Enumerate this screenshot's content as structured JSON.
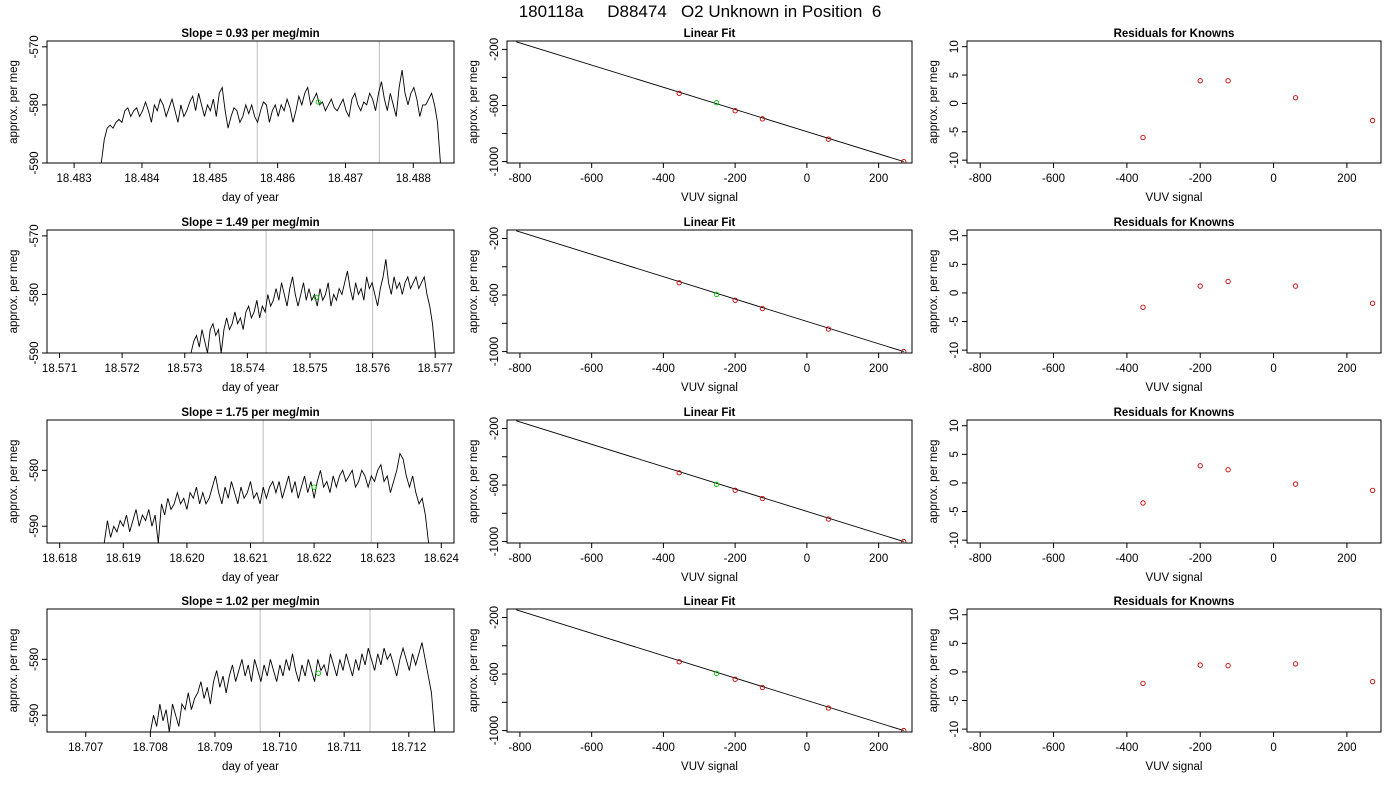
{
  "figure": {
    "title": "180118a     D88474   O2 Unknown in Position  6"
  },
  "styles": {
    "trace_color": "#000000",
    "vline_color": "#c8c8c8",
    "fit_line_color": "#000000",
    "known_point_color": "#cc0000",
    "unknown_point_color": "#00cc00",
    "axis_color": "#000000"
  },
  "chart_data": [
    {
      "type": "line",
      "panel": "timeseries",
      "row": 0,
      "title": "Slope =  0.93  per meg/min",
      "xlabel": "day of year",
      "ylabel": "approx. per meg",
      "xlim": [
        18.4826,
        18.4886
      ],
      "ylim": [
        -590,
        -569
      ],
      "xticks": [
        18.483,
        18.484,
        18.485,
        18.486,
        18.487,
        18.488
      ],
      "xtick_labels": [
        "18.483",
        "18.484",
        "18.485",
        "18.486",
        "18.487",
        "18.488"
      ],
      "yticks": [
        -590,
        -580,
        -570
      ],
      "ytick_labels": [
        "-590",
        "-580",
        "-570"
      ],
      "vlines": [
        18.4857,
        18.4875
      ],
      "trace": {
        "x_start": 18.4834,
        "x_end": 18.4884,
        "values": [
          -590,
          -586,
          -584,
          -583.5,
          -584,
          -583,
          -582.5,
          -583,
          -581,
          -580.5,
          -582,
          -581,
          -580.5,
          -582,
          -581,
          -579.5,
          -581,
          -583,
          -580,
          -581,
          -579,
          -580,
          -582,
          -580.5,
          -579,
          -581,
          -583,
          -580,
          -582,
          -581,
          -579.5,
          -578.5,
          -581,
          -578,
          -580,
          -582,
          -580,
          -581,
          -579,
          -582,
          -578,
          -577,
          -581,
          -584,
          -582,
          -580.5,
          -581,
          -583,
          -582,
          -580,
          -581.5,
          -580,
          -582,
          -583,
          -581,
          -579.5,
          -580,
          -583,
          -581,
          -580,
          -582,
          -580,
          -581,
          -579,
          -580.5,
          -583,
          -581,
          -578.5,
          -580,
          -578,
          -577,
          -580,
          -579,
          -578,
          -580,
          -579.5,
          -581,
          -580,
          -579,
          -580.5,
          -581,
          -580,
          -579,
          -581,
          -582,
          -579,
          -578,
          -580,
          -581,
          -579.5,
          -580,
          -578,
          -579,
          -581,
          -578,
          -576,
          -579,
          -581,
          -578,
          -580,
          -582,
          -577,
          -574,
          -578,
          -580,
          -578,
          -577,
          -579,
          -582,
          -580,
          -580,
          -579,
          -578,
          -580,
          -583,
          -590
        ]
      },
      "unknown_point": {
        "x": 18.4866,
        "y": -579.5
      }
    },
    {
      "type": "scatter",
      "panel": "linear_fit",
      "row": 0,
      "title": "Linear Fit",
      "xlabel": "VUV signal",
      "ylabel": "approx. per meg",
      "xlim": [
        -836,
        293
      ],
      "ylim": [
        -1010,
        -140
      ],
      "xticks": [
        -800,
        -600,
        -400,
        -200,
        0,
        200
      ],
      "xtick_labels": [
        "-800",
        "-600",
        "-400",
        "-200",
        "0",
        "200"
      ],
      "yticks": [
        -1000,
        -800,
        -600,
        -400,
        -200
      ],
      "ytick_labels": [
        "-1000",
        "",
        "-600",
        "",
        "-200"
      ],
      "fit_line": {
        "x": [
          -810,
          270
        ],
        "y": [
          -146,
          -1000
        ]
      },
      "knowns": {
        "x": [
          -356,
          -200,
          -124,
          60,
          270
        ],
        "y": [
          -513,
          -637,
          -695,
          -840,
          -1000
        ]
      },
      "unknown": {
        "x": [
          -252
        ],
        "y": [
          -580
        ]
      }
    },
    {
      "type": "scatter",
      "panel": "residuals",
      "row": 0,
      "title": "Residuals for Knowns",
      "xlabel": "VUV signal",
      "ylabel": "approx. per meg",
      "xlim": [
        -836,
        293
      ],
      "ylim": [
        -10.5,
        11
      ],
      "xticks": [
        -800,
        -600,
        -400,
        -200,
        0,
        200
      ],
      "xtick_labels": [
        "-800",
        "-600",
        "-400",
        "-200",
        "0",
        "200"
      ],
      "yticks": [
        -10,
        -5,
        0,
        5,
        10
      ],
      "ytick_labels": [
        "-10",
        "-5",
        "0",
        "5",
        "10"
      ],
      "points": {
        "x": [
          -356,
          -200,
          -124,
          60,
          270
        ],
        "y": [
          -6,
          4,
          4,
          1,
          -3
        ]
      }
    },
    {
      "type": "line",
      "panel": "timeseries",
      "row": 1,
      "title": "Slope =  1.49  per meg/min",
      "xlabel": "day of year",
      "ylabel": "approx. per meg",
      "xlim": [
        18.5708,
        18.5773
      ],
      "ylim": [
        -590,
        -569
      ],
      "xticks": [
        18.571,
        18.572,
        18.573,
        18.574,
        18.575,
        18.576,
        18.577
      ],
      "xtick_labels": [
        "18.571",
        "18.572",
        "18.573",
        "18.574",
        "18.575",
        "18.576",
        "18.577"
      ],
      "yticks": [
        -590,
        -580,
        -570
      ],
      "ytick_labels": [
        "-590",
        "-580",
        "-570"
      ],
      "vlines": [
        18.5743,
        18.576
      ],
      "trace": {
        "x_start": 18.5731,
        "x_end": 18.577,
        "values": [
          -590,
          -588,
          -587,
          -589,
          -586,
          -588,
          -590,
          -586,
          -585,
          -587,
          -586,
          -590,
          -586,
          -584,
          -586,
          -585,
          -583,
          -585,
          -584,
          -586,
          -583,
          -582,
          -584,
          -583,
          -581,
          -584,
          -582,
          -583,
          -580,
          -582,
          -581,
          -579,
          -581,
          -578,
          -580,
          -582,
          -579,
          -577,
          -580,
          -582,
          -580,
          -578,
          -581,
          -579,
          -581,
          -580,
          -582,
          -579,
          -581,
          -580,
          -578,
          -582,
          -580,
          -581,
          -579,
          -580,
          -578,
          -576,
          -579,
          -581,
          -578,
          -580,
          -579,
          -581,
          -577,
          -579,
          -578,
          -580,
          -582,
          -579,
          -577,
          -574,
          -578,
          -580,
          -577,
          -579,
          -578,
          -580,
          -578,
          -577,
          -579,
          -578,
          -577,
          -579,
          -578,
          -577,
          -580,
          -582,
          -585,
          -590
        ]
      },
      "unknown_point": {
        "x": 18.5751,
        "y": -580.5
      }
    },
    {
      "type": "scatter",
      "panel": "linear_fit",
      "row": 1,
      "title": "Linear Fit",
      "xlabel": "VUV signal",
      "ylabel": "approx. per meg",
      "xlim": [
        -836,
        293
      ],
      "ylim": [
        -1010,
        -140
      ],
      "xticks": [
        -800,
        -600,
        -400,
        -200,
        0,
        200
      ],
      "xtick_labels": [
        "-800",
        "-600",
        "-400",
        "-200",
        "0",
        "200"
      ],
      "yticks": [
        -1000,
        -800,
        -600,
        -400,
        -200
      ],
      "ytick_labels": [
        "-1000",
        "",
        "-600",
        "",
        "-200"
      ],
      "fit_line": {
        "x": [
          -810,
          270
        ],
        "y": [
          -146,
          -1000
        ]
      },
      "knowns": {
        "x": [
          -356,
          -200,
          -124,
          60,
          270
        ],
        "y": [
          -513,
          -637,
          -695,
          -840,
          -1000
        ]
      },
      "unknown": {
        "x": [
          -252
        ],
        "y": [
          -595
        ]
      }
    },
    {
      "type": "scatter",
      "panel": "residuals",
      "row": 1,
      "title": "Residuals for Knowns",
      "xlabel": "VUV signal",
      "ylabel": "approx. per meg",
      "xlim": [
        -836,
        293
      ],
      "ylim": [
        -10.5,
        11
      ],
      "xticks": [
        -800,
        -600,
        -400,
        -200,
        0,
        200
      ],
      "xtick_labels": [
        "-800",
        "-600",
        "-400",
        "-200",
        "0",
        "200"
      ],
      "yticks": [
        -10,
        -5,
        0,
        5,
        10
      ],
      "ytick_labels": [
        "-10",
        "-5",
        "0",
        "5",
        "10"
      ],
      "points": {
        "x": [
          -356,
          -200,
          -124,
          60,
          270
        ],
        "y": [
          -2.5,
          1.2,
          2,
          1.2,
          -1.8
        ]
      }
    },
    {
      "type": "line",
      "panel": "timeseries",
      "row": 2,
      "title": "Slope =  1.75  per meg/min",
      "xlabel": "day of year",
      "ylabel": "approx. per meg",
      "xlim": [
        18.6178,
        18.6242
      ],
      "ylim": [
        -593,
        -571
      ],
      "xticks": [
        18.618,
        18.619,
        18.62,
        18.621,
        18.622,
        18.623,
        18.624
      ],
      "xtick_labels": [
        "18.618",
        "18.619",
        "18.620",
        "18.621",
        "18.622",
        "18.623",
        "18.624"
      ],
      "yticks": [
        -590,
        -580
      ],
      "ytick_labels": [
        "-590",
        "-580"
      ],
      "vlines": [
        18.6212,
        18.6229
      ],
      "trace": {
        "x_start": 18.6187,
        "x_end": 18.6238,
        "values": [
          -593,
          -589,
          -592,
          -590,
          -591,
          -589,
          -590,
          -588,
          -591,
          -589,
          -587,
          -590,
          -588,
          -589,
          -587,
          -590,
          -588,
          -593,
          -586,
          -588,
          -585,
          -587,
          -586,
          -584,
          -586,
          -585,
          -587,
          -584,
          -585,
          -583,
          -586,
          -584,
          -586,
          -585,
          -583,
          -581,
          -584,
          -586,
          -583,
          -585,
          -582,
          -584,
          -586,
          -583,
          -585,
          -584,
          -582,
          -585,
          -584,
          -586,
          -583,
          -585,
          -583,
          -582,
          -584,
          -582,
          -585,
          -583,
          -581,
          -584,
          -582,
          -585,
          -583,
          -581,
          -584,
          -582,
          -585,
          -582,
          -580,
          -583,
          -582,
          -584,
          -581,
          -583,
          -581,
          -580,
          -582,
          -581,
          -580,
          -583,
          -582,
          -580,
          -581,
          -583,
          -581,
          -582,
          -580,
          -579,
          -582,
          -581,
          -584,
          -582,
          -580,
          -577,
          -578,
          -581,
          -583,
          -581,
          -584,
          -586,
          -585,
          -588,
          -593
        ]
      },
      "unknown_point": {
        "x": 18.622,
        "y": -583
      }
    },
    {
      "type": "scatter",
      "panel": "linear_fit",
      "row": 2,
      "title": "Linear Fit",
      "xlabel": "VUV signal",
      "ylabel": "approx. per meg",
      "xlim": [
        -836,
        293
      ],
      "ylim": [
        -1010,
        -140
      ],
      "xticks": [
        -800,
        -600,
        -400,
        -200,
        0,
        200
      ],
      "xtick_labels": [
        "-800",
        "-600",
        "-400",
        "-200",
        "0",
        "200"
      ],
      "yticks": [
        -1000,
        -800,
        -600,
        -400,
        -200
      ],
      "ytick_labels": [
        "-1000",
        "",
        "-600",
        "",
        "-200"
      ],
      "fit_line": {
        "x": [
          -810,
          270
        ],
        "y": [
          -146,
          -1000
        ]
      },
      "knowns": {
        "x": [
          -356,
          -200,
          -124,
          60,
          270
        ],
        "y": [
          -513,
          -637,
          -695,
          -840,
          -1000
        ]
      },
      "unknown": {
        "x": [
          -252
        ],
        "y": [
          -595
        ]
      }
    },
    {
      "type": "scatter",
      "panel": "residuals",
      "row": 2,
      "title": "Residuals for Knowns",
      "xlabel": "VUV signal",
      "ylabel": "approx. per meg",
      "xlim": [
        -836,
        293
      ],
      "ylim": [
        -10.5,
        11
      ],
      "xticks": [
        -800,
        -600,
        -400,
        -200,
        0,
        200
      ],
      "xtick_labels": [
        "-800",
        "-600",
        "-400",
        "-200",
        "0",
        "200"
      ],
      "yticks": [
        -10,
        -5,
        0,
        5,
        10
      ],
      "ytick_labels": [
        "-10",
        "-5",
        "0",
        "5",
        "10"
      ],
      "points": {
        "x": [
          -356,
          -200,
          -124,
          60,
          270
        ],
        "y": [
          -3.5,
          3,
          2.3,
          -0.2,
          -1.3
        ]
      }
    },
    {
      "type": "line",
      "panel": "timeseries",
      "row": 3,
      "title": "Slope =  1.02  per meg/min",
      "xlabel": "day of year",
      "ylabel": "approx. per meg",
      "xlim": [
        18.7064,
        18.7127
      ],
      "ylim": [
        -593,
        -571
      ],
      "xticks": [
        18.707,
        18.708,
        18.709,
        18.71,
        18.711,
        18.712
      ],
      "xtick_labels": [
        "18.707",
        "18.708",
        "18.709",
        "18.710",
        "18.711",
        "18.712"
      ],
      "yticks": [
        -590,
        -580
      ],
      "ytick_labels": [
        "-590",
        "-580"
      ],
      "vlines": [
        18.7097,
        18.7114
      ],
      "trace": {
        "x_start": 18.708,
        "x_end": 18.7124,
        "values": [
          -593,
          -590,
          -592,
          -588,
          -591,
          -589,
          -593,
          -588,
          -590,
          -592,
          -588,
          -589,
          -586,
          -589,
          -587,
          -586,
          -584,
          -587,
          -585,
          -588,
          -584,
          -582,
          -585,
          -583,
          -586,
          -583,
          -581,
          -584,
          -582,
          -580,
          -583,
          -581,
          -584,
          -580,
          -582,
          -584,
          -581,
          -583,
          -580,
          -582,
          -584,
          -581,
          -583,
          -580,
          -582,
          -579,
          -582,
          -584,
          -581,
          -583,
          -580,
          -582,
          -584,
          -580,
          -582,
          -581,
          -583,
          -579,
          -581,
          -583,
          -580,
          -582,
          -579,
          -581,
          -583,
          -580,
          -582,
          -579,
          -581,
          -578,
          -580,
          -582,
          -579,
          -581,
          -578,
          -580,
          -579,
          -581,
          -583,
          -580,
          -578,
          -580,
          -582,
          -579,
          -581,
          -579,
          -577,
          -580,
          -583,
          -586,
          -593
        ]
      },
      "unknown_point": {
        "x": 18.7106,
        "y": -582.5
      }
    },
    {
      "type": "scatter",
      "panel": "linear_fit",
      "row": 3,
      "title": "Linear Fit",
      "xlabel": "VUV signal",
      "ylabel": "approx. per meg",
      "xlim": [
        -836,
        293
      ],
      "ylim": [
        -1010,
        -140
      ],
      "xticks": [
        -800,
        -600,
        -400,
        -200,
        0,
        200
      ],
      "xtick_labels": [
        "-800",
        "-600",
        "-400",
        "-200",
        "0",
        "200"
      ],
      "yticks": [
        -1000,
        -800,
        -600,
        -400,
        -200
      ],
      "ytick_labels": [
        "-1000",
        "",
        "-600",
        "",
        "-200"
      ],
      "fit_line": {
        "x": [
          -810,
          270
        ],
        "y": [
          -146,
          -1000
        ]
      },
      "knowns": {
        "x": [
          -356,
          -200,
          -124,
          60,
          270
        ],
        "y": [
          -513,
          -637,
          -695,
          -840,
          -1000
        ]
      },
      "unknown": {
        "x": [
          -252
        ],
        "y": [
          -595
        ]
      }
    },
    {
      "type": "scatter",
      "panel": "residuals",
      "row": 3,
      "title": "Residuals for Knowns",
      "xlabel": "VUV signal",
      "ylabel": "approx. per meg",
      "xlim": [
        -836,
        293
      ],
      "ylim": [
        -10.5,
        11
      ],
      "xticks": [
        -800,
        -600,
        -400,
        -200,
        0,
        200
      ],
      "xtick_labels": [
        "-800",
        "-600",
        "-400",
        "-200",
        "0",
        "200"
      ],
      "yticks": [
        -10,
        -5,
        0,
        5,
        10
      ],
      "ytick_labels": [
        "-10",
        "-5",
        "0",
        "5",
        "10"
      ],
      "points": {
        "x": [
          -356,
          -200,
          -124,
          60,
          270
        ],
        "y": [
          -2,
          1.2,
          1.1,
          1.4,
          -1.7
        ]
      }
    }
  ]
}
